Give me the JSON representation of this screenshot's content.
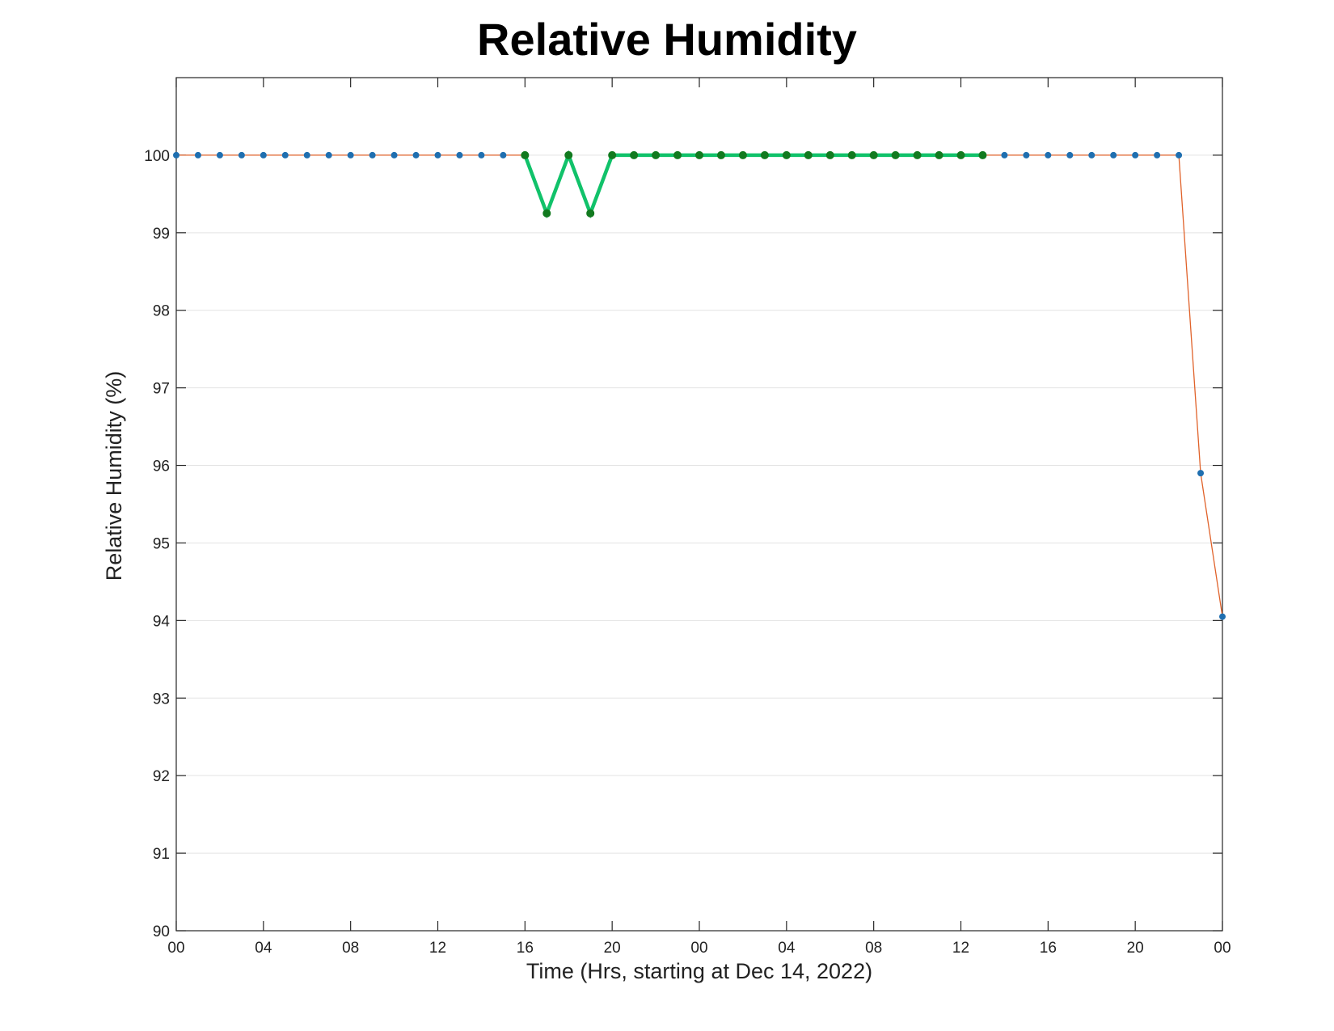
{
  "chart_data": {
    "type": "line",
    "title": "Relative Humidity",
    "xlabel": "Time (Hrs, starting at Dec 14, 2022)",
    "ylabel": "Relative Humidity (%)",
    "x_unit": "hours",
    "xlim": [
      0,
      48
    ],
    "ylim": [
      90,
      101
    ],
    "x_ticks": [
      0,
      4,
      8,
      12,
      16,
      20,
      24,
      28,
      32,
      36,
      40,
      44,
      48
    ],
    "x_tick_labels": [
      "00",
      "04",
      "08",
      "12",
      "16",
      "20",
      "00",
      "04",
      "08",
      "12",
      "16",
      "20",
      "00"
    ],
    "y_ticks": [
      90,
      91,
      92,
      93,
      94,
      95,
      96,
      97,
      98,
      99,
      100
    ],
    "y_tick_labels": [
      "90",
      "91",
      "92",
      "93",
      "94",
      "95",
      "96",
      "97",
      "98",
      "99",
      "100"
    ],
    "grid": "horizontal",
    "colors": {
      "full_line": "#e0622a",
      "full_markers": "#1f6fb0",
      "highlight_line": "#11c26a",
      "highlight_markers": "#127a1f"
    },
    "series": [
      {
        "x": [
          0,
          1,
          2,
          3,
          4,
          5,
          6,
          7,
          8,
          9,
          10,
          11,
          12,
          13,
          14,
          15,
          16,
          17,
          18,
          19,
          20,
          21,
          22,
          23,
          24,
          25,
          26,
          27,
          28,
          29,
          30,
          31,
          32,
          33,
          34,
          35,
          36,
          37,
          38,
          39,
          40,
          41,
          42,
          43,
          44,
          45,
          46,
          47,
          48
        ],
        "values": [
          100,
          100,
          100,
          100,
          100,
          100,
          100,
          100,
          100,
          100,
          100,
          100,
          100,
          100,
          100,
          100,
          100,
          99.25,
          100,
          99.25,
          100,
          100,
          100,
          100,
          100,
          100,
          100,
          100,
          100,
          100,
          100,
          100,
          100,
          100,
          100,
          100,
          100,
          100,
          100,
          100,
          100,
          100,
          100,
          100,
          100,
          100,
          100,
          95.9,
          94.05
        ]
      },
      {
        "x": [
          16,
          17,
          18,
          19,
          20,
          21,
          22,
          23,
          24,
          25,
          26,
          27,
          28,
          29,
          30,
          31,
          32,
          33,
          34,
          35,
          36,
          37
        ],
        "values": [
          100,
          99.25,
          100,
          99.25,
          100,
          100,
          100,
          100,
          100,
          100,
          100,
          100,
          100,
          100,
          100,
          100,
          100,
          100,
          100,
          100,
          100,
          100
        ]
      }
    ]
  }
}
